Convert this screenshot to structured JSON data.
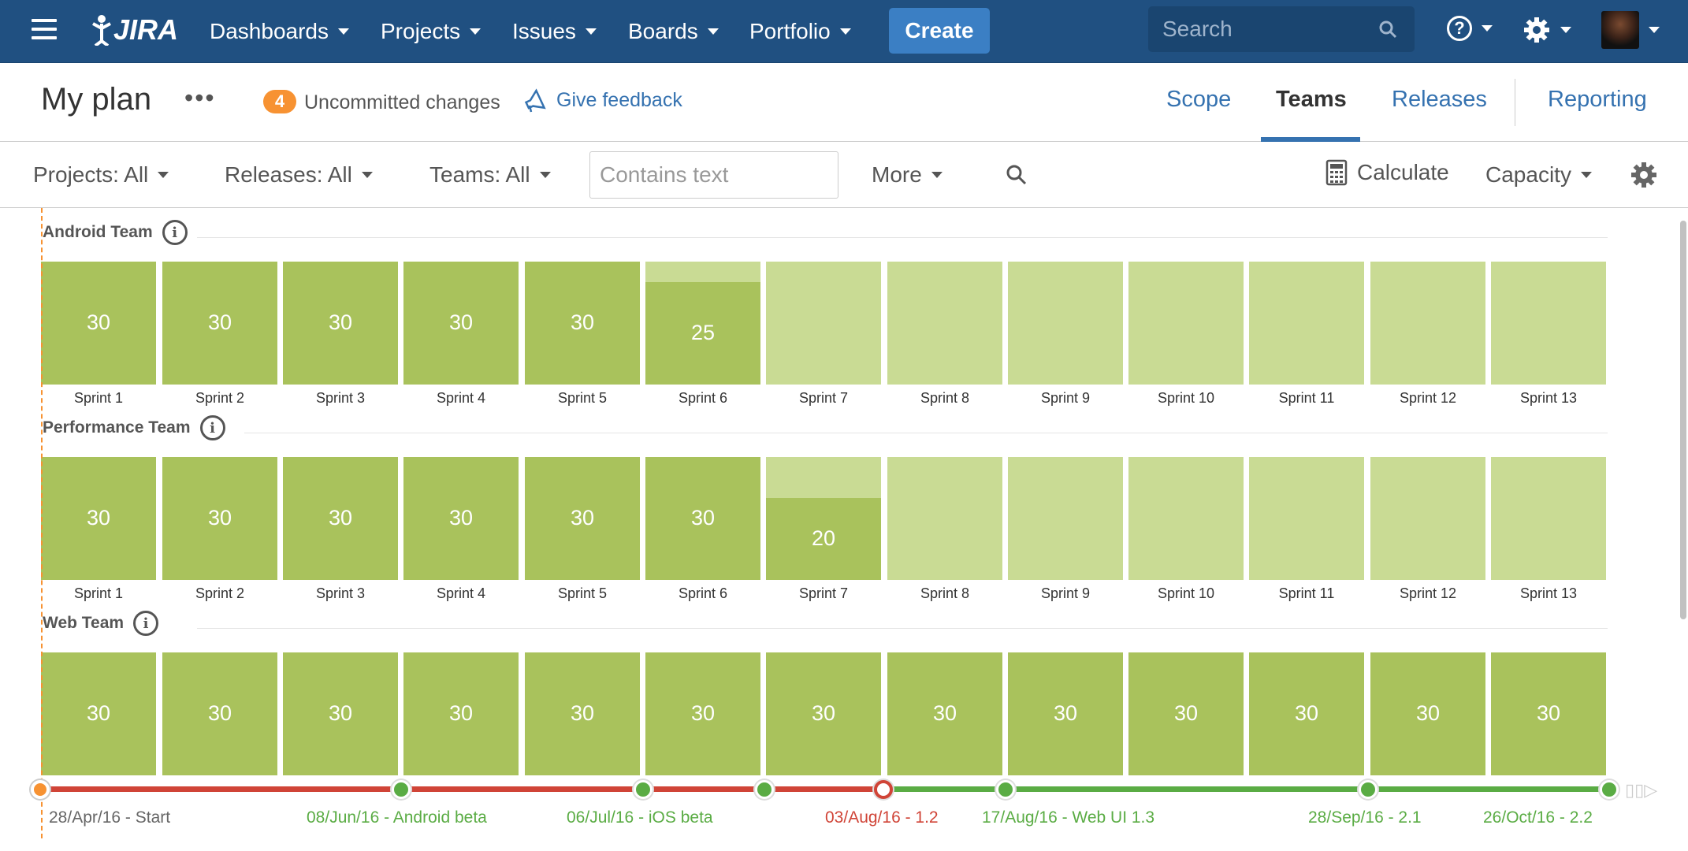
{
  "nav": {
    "logo_text": "JIRA",
    "dashboards": "Dashboards",
    "projects": "Projects",
    "issues": "Issues",
    "boards": "Boards",
    "portfolio": "Portfolio",
    "create": "Create",
    "search_placeholder": "Search",
    "help_glyph": "?"
  },
  "plan": {
    "title": "My plan",
    "more": "•••",
    "uncommitted_count": "4",
    "uncommitted_label": "Uncommitted changes",
    "feedback": "Give feedback",
    "tabs": {
      "scope": "Scope",
      "teams": "Teams",
      "releases": "Releases",
      "reporting": "Reporting"
    },
    "active_tab": "Teams"
  },
  "filters": {
    "projects": "Projects: All",
    "releases": "Releases: All",
    "teams": "Teams: All",
    "text_placeholder": "Contains text",
    "more": "More",
    "calculate": "Calculate",
    "capacity": "Capacity"
  },
  "teams": [
    {
      "name": "Android Team",
      "sprints": [
        {
          "label": "Sprint 1",
          "value": "30",
          "fill": 1
        },
        {
          "label": "Sprint 2",
          "value": "30",
          "fill": 1
        },
        {
          "label": "Sprint 3",
          "value": "30",
          "fill": 1
        },
        {
          "label": "Sprint 4",
          "value": "30",
          "fill": 1
        },
        {
          "label": "Sprint 5",
          "value": "30",
          "fill": 1
        },
        {
          "label": "Sprint 6",
          "value": "25",
          "fill": 0.833
        },
        {
          "label": "Sprint 7",
          "value": "",
          "fill": 0
        },
        {
          "label": "Sprint 8",
          "value": "",
          "fill": 0
        },
        {
          "label": "Sprint 9",
          "value": "",
          "fill": 0
        },
        {
          "label": "Sprint 10",
          "value": "",
          "fill": 0
        },
        {
          "label": "Sprint 11",
          "value": "",
          "fill": 0
        },
        {
          "label": "Sprint 12",
          "value": "",
          "fill": 0
        },
        {
          "label": "Sprint 13",
          "value": "",
          "fill": 0
        }
      ]
    },
    {
      "name": "Performance Team",
      "sprints": [
        {
          "label": "Sprint 1",
          "value": "30",
          "fill": 1
        },
        {
          "label": "Sprint 2",
          "value": "30",
          "fill": 1
        },
        {
          "label": "Sprint 3",
          "value": "30",
          "fill": 1
        },
        {
          "label": "Sprint 4",
          "value": "30",
          "fill": 1
        },
        {
          "label": "Sprint 5",
          "value": "30",
          "fill": 1
        },
        {
          "label": "Sprint 6",
          "value": "30",
          "fill": 1
        },
        {
          "label": "Sprint 7",
          "value": "20",
          "fill": 0.667
        },
        {
          "label": "Sprint 8",
          "value": "",
          "fill": 0
        },
        {
          "label": "Sprint 9",
          "value": "",
          "fill": 0
        },
        {
          "label": "Sprint 10",
          "value": "",
          "fill": 0
        },
        {
          "label": "Sprint 11",
          "value": "",
          "fill": 0
        },
        {
          "label": "Sprint 12",
          "value": "",
          "fill": 0
        },
        {
          "label": "Sprint 13",
          "value": "",
          "fill": 0
        }
      ]
    },
    {
      "name": "Web Team",
      "sprints": [
        {
          "label": "",
          "value": "30",
          "fill": 1
        },
        {
          "label": "",
          "value": "30",
          "fill": 1
        },
        {
          "label": "",
          "value": "30",
          "fill": 1
        },
        {
          "label": "",
          "value": "30",
          "fill": 1
        },
        {
          "label": "",
          "value": "30",
          "fill": 1
        },
        {
          "label": "",
          "value": "30",
          "fill": 1
        },
        {
          "label": "",
          "value": "30",
          "fill": 1
        },
        {
          "label": "",
          "value": "30",
          "fill": 1
        },
        {
          "label": "",
          "value": "30",
          "fill": 1
        },
        {
          "label": "",
          "value": "30",
          "fill": 1
        },
        {
          "label": "",
          "value": "30",
          "fill": 1
        },
        {
          "label": "",
          "value": "30",
          "fill": 1
        },
        {
          "label": "",
          "value": "30",
          "fill": 1
        }
      ]
    }
  ],
  "releases": [
    {
      "label": "28/Apr/16 - Start",
      "status": "start"
    },
    {
      "label": "08/Jun/16 - Android beta",
      "status": "on-track"
    },
    {
      "label": "06/Jul/16 - iOS beta",
      "status": "on-track"
    },
    {
      "label": "",
      "status": "on-track"
    },
    {
      "label": "03/Aug/16 - 1.2",
      "status": "late"
    },
    {
      "label": "17/Aug/16 - Web UI 1.3",
      "status": "on-track"
    },
    {
      "label": "28/Sep/16 - 2.1",
      "status": "on-track"
    },
    {
      "label": "26/Oct/16 - 2.2",
      "status": "on-track"
    }
  ],
  "colors": {
    "nav_bg": "#205081",
    "link": "#3572b0",
    "capacity_used": "#a9c25c",
    "capacity_free": "#c9db94",
    "late": "#d04437",
    "on_track": "#5aac44",
    "today": "#f79232"
  }
}
